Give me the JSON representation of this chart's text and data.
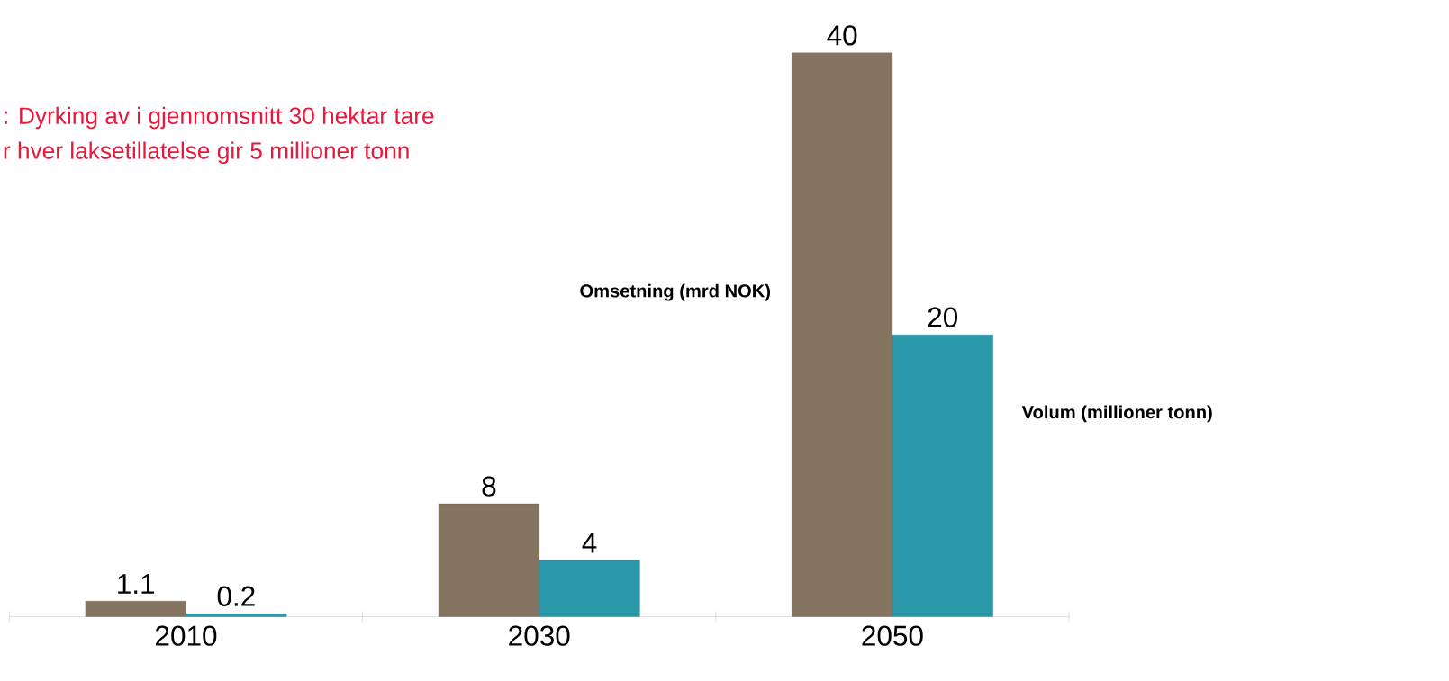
{
  "chart_data": {
    "type": "bar",
    "categories": [
      "2010",
      "2030",
      "2050"
    ],
    "series": [
      {
        "name": "Omsetning (mrd NOK)",
        "color": "#857560",
        "values": [
          1.1,
          8,
          40
        ]
      },
      {
        "name": "Volum (millioner tonn)",
        "color": "#2a9aab",
        "values": [
          0.2,
          4,
          20
        ]
      }
    ],
    "data_labels": true,
    "annotations": [
      ": Dyrking av i gjennomsnitt 30 hektar tare",
      "r hver laksetillatelse gir 5 millioner  tonn"
    ]
  }
}
